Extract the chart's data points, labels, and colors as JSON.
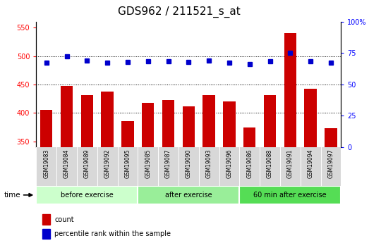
{
  "title": "GDS962 / 211521_s_at",
  "samples": [
    "GSM19083",
    "GSM19084",
    "GSM19089",
    "GSM19092",
    "GSM19095",
    "GSM19085",
    "GSM19087",
    "GSM19090",
    "GSM19093",
    "GSM19096",
    "GSM19086",
    "GSM19088",
    "GSM19091",
    "GSM19094",
    "GSM19097"
  ],
  "bar_values": [
    405,
    448,
    431,
    437,
    386,
    418,
    423,
    411,
    431,
    420,
    374,
    431,
    540,
    443,
    373
  ],
  "dot_values": [
    488,
    500,
    492,
    488,
    490,
    491,
    491,
    490,
    492,
    488,
    486,
    491,
    505,
    491,
    488
  ],
  "ylim_left": [
    340,
    560
  ],
  "ylim_right": [
    0,
    100
  ],
  "yticks_left": [
    350,
    400,
    450,
    500,
    550
  ],
  "yticks_right": [
    0,
    25,
    50,
    75,
    100
  ],
  "bar_color": "#cc0000",
  "dot_color": "#0000cc",
  "groups": [
    {
      "label": "before exercise",
      "start": 0,
      "end": 5,
      "color": "#ccffcc"
    },
    {
      "label": "after exercise",
      "start": 5,
      "end": 10,
      "color": "#99ee99"
    },
    {
      "label": "60 min after exercise",
      "start": 10,
      "end": 15,
      "color": "#55dd55"
    }
  ],
  "time_label": "time",
  "legend_count": "count",
  "legend_percentile": "percentile rank within the sample",
  "plot_bg_color": "#ffffff",
  "xlabels_bg_color": "#d8d8d8",
  "title_fontsize": 11,
  "tick_fontsize": 7,
  "sample_fontsize": 5.5,
  "group_fontsize": 7,
  "legend_fontsize": 7
}
